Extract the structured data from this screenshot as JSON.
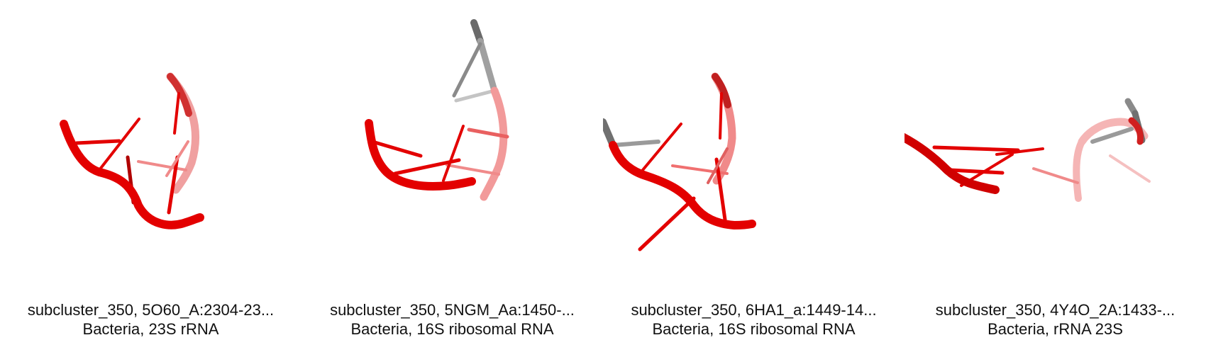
{
  "colors": {
    "strand_red": "#e30000",
    "strand_dark_red": "#b30000",
    "strand_light_red": "#f08a8a",
    "strand_grey": "#7a7a7a",
    "strand_light_grey": "#bdbdbd",
    "caption_text": "#111111",
    "background": "#ffffff"
  },
  "panels": [
    {
      "title": "subcluster_350, 5O60_A:2304-23...",
      "subtitle": "Bacteria, 23S rRNA",
      "image": "rna-backbone-structure-render"
    },
    {
      "title": "subcluster_350, 5NGM_Aa:1450-...",
      "subtitle": "Bacteria, 16S ribosomal RNA",
      "image": "rna-backbone-structure-render"
    },
    {
      "title": "subcluster_350, 6HA1_a:1449-14...",
      "subtitle": "Bacteria, 16S ribosomal RNA",
      "image": "rna-backbone-structure-render"
    },
    {
      "title": "subcluster_350, 4Y4O_2A:1433-...",
      "subtitle": "Bacteria, rRNA 23S",
      "image": "rna-backbone-structure-render"
    }
  ]
}
